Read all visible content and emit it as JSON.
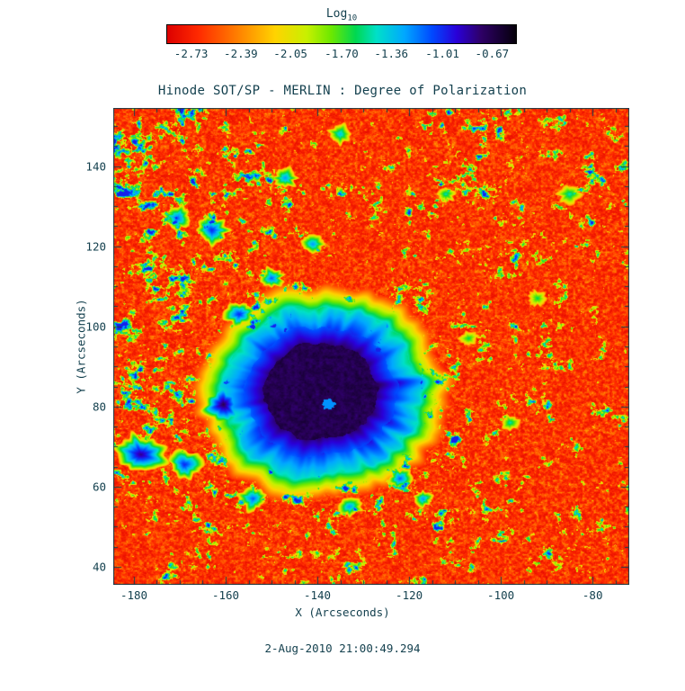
{
  "theme": {
    "background": "#ffffff",
    "text_color": "#123f4d",
    "frame_color": "#123f4d"
  },
  "footer": {
    "timestamp": "2-Aug-2010 21:00:49.294"
  },
  "chart_data": {
    "type": "heatmap",
    "title": "Hinode SOT/SP - MERLIN : Degree of Polarization",
    "xlabel": "X (Arcseconds)",
    "ylabel": "Y (Arcseconds)",
    "x_range": [
      -184.5,
      -72.0
    ],
    "y_range": [
      35.5,
      154.5
    ],
    "x_ticks": [
      -180,
      -160,
      -140,
      -120,
      -100,
      -80
    ],
    "y_ticks": [
      40,
      60,
      80,
      100,
      120,
      140
    ],
    "minor_tick_step": 5,
    "grid": false,
    "legend": "none",
    "colorbar": {
      "label": "Log",
      "label_sub": "10",
      "orientation": "horizontal",
      "position": "top",
      "min": -2.9,
      "max": -0.5,
      "ticks": [
        -2.73,
        -2.39,
        -2.05,
        -1.7,
        -1.36,
        -1.01,
        -0.67
      ],
      "tick_labels": [
        "-2.73",
        "-2.39",
        "-2.05",
        "-1.70",
        "-1.36",
        "-1.01",
        "-0.67"
      ],
      "palette": [
        [
          0.0,
          "#dd0000"
        ],
        [
          0.09,
          "#ff2a00"
        ],
        [
          0.2,
          "#ff7e00"
        ],
        [
          0.31,
          "#ffd300"
        ],
        [
          0.4,
          "#c8f000"
        ],
        [
          0.47,
          "#6ce800"
        ],
        [
          0.54,
          "#00d850"
        ],
        [
          0.6,
          "#00e0c8"
        ],
        [
          0.68,
          "#00a8ff"
        ],
        [
          0.76,
          "#0048ff"
        ],
        [
          0.83,
          "#2a00d8"
        ],
        [
          0.9,
          "#2e0066"
        ],
        [
          0.96,
          "#150030"
        ],
        [
          1.0,
          "#05000a"
        ]
      ]
    },
    "features": {
      "description": "Quiet Sun of weak polarization (red) with fine granular speckle; green/cyan/blue magnetic network and plage patches, densest north-west of the spot; one large sunspot near (-139, 84) with dark purple umbra, blue filamentary penumbra and a ragged cyan-green-yellow fringe; several pore-like blue/purple knots.",
      "sunspot": {
        "cx": -139.5,
        "cy": 84,
        "umbra_radius": 12,
        "penumbra_radius": 24,
        "fringe_radius": 27.5
      },
      "blobs": [
        {
          "x": -160.5,
          "y": 80.5,
          "r": 4.5,
          "v": 0.92
        },
        {
          "x": -178.5,
          "y": 68.0,
          "r": 5.0,
          "v": 0.88
        },
        {
          "x": -169.0,
          "y": 65.5,
          "r": 3.5,
          "v": 0.8
        },
        {
          "x": -163.0,
          "y": 124.0,
          "r": 3.5,
          "v": 0.8
        },
        {
          "x": -170.5,
          "y": 127.0,
          "r": 3.0,
          "v": 0.75
        },
        {
          "x": -157.0,
          "y": 103.0,
          "r": 3.0,
          "v": 0.8
        },
        {
          "x": -150.0,
          "y": 112.0,
          "r": 2.5,
          "v": 0.75
        },
        {
          "x": -141.0,
          "y": 120.5,
          "r": 2.5,
          "v": 0.7
        },
        {
          "x": -154.0,
          "y": 57.0,
          "r": 3.0,
          "v": 0.75
        },
        {
          "x": -133.0,
          "y": 55.0,
          "r": 2.5,
          "v": 0.7
        },
        {
          "x": -122.0,
          "y": 62.0,
          "r": 2.5,
          "v": 0.75
        },
        {
          "x": -147.0,
          "y": 137.0,
          "r": 2.5,
          "v": 0.7
        },
        {
          "x": -135.0,
          "y": 148.0,
          "r": 2.5,
          "v": 0.65
        },
        {
          "x": -117.0,
          "y": 57.0,
          "r": 2.0,
          "v": 0.7
        },
        {
          "x": -98.0,
          "y": 76.0,
          "r": 2.0,
          "v": 0.6
        },
        {
          "x": -92.0,
          "y": 107.0,
          "r": 2.0,
          "v": 0.55
        },
        {
          "x": -85.0,
          "y": 133.0,
          "r": 2.5,
          "v": 0.6
        },
        {
          "x": -112.0,
          "y": 133.0,
          "r": 2.0,
          "v": 0.6
        },
        {
          "x": -107.0,
          "y": 97.0,
          "r": 2.0,
          "v": 0.55
        },
        {
          "x": -137.5,
          "y": 80.5,
          "r": 1.3,
          "v": 0.7,
          "cut": true
        }
      ]
    },
    "noise_seed": 7
  }
}
